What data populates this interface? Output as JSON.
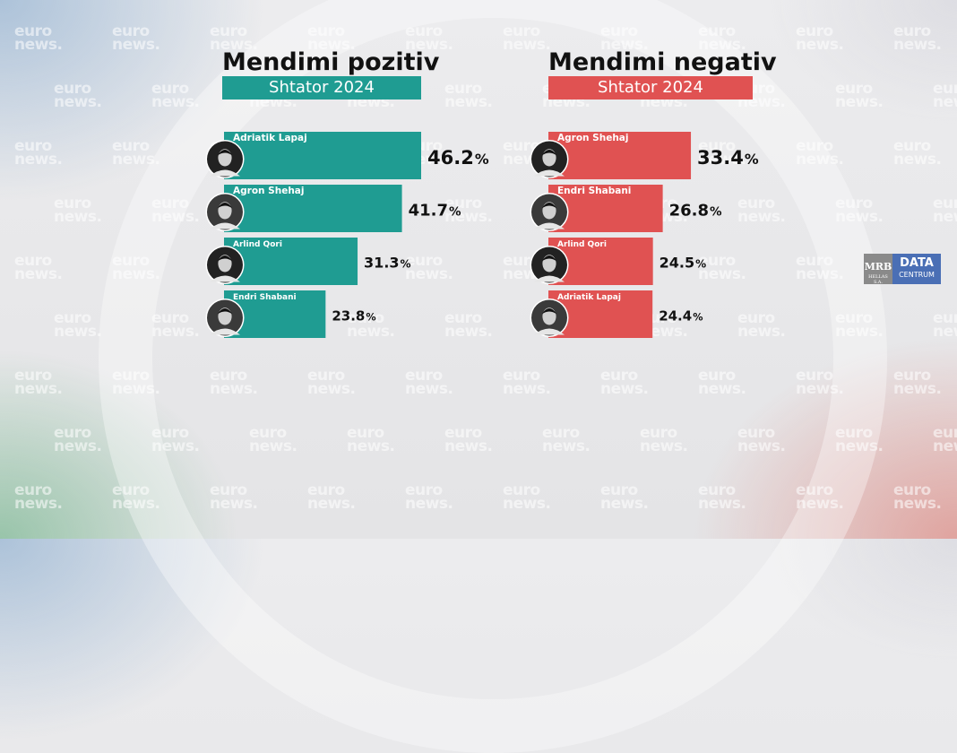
{
  "colors": {
    "positive": "#1f9c92",
    "negative": "#e05252"
  },
  "watermark": {
    "line1": "euro",
    "line2": "news."
  },
  "logo": {
    "mrb": "MRB",
    "mrb_sub": "HELLAS S.A.",
    "data": "DATA",
    "centrum": "CENTRUM"
  },
  "chart_data": [
    {
      "type": "bar",
      "orientation": "horizontal",
      "title": "Mendimi pozitiv",
      "subtitle": "Shtator 2024",
      "categories": [
        "Adriatik Lapaj",
        "Agron Shehaj",
        "Arlind Qori",
        "Endri Shabani"
      ],
      "values": [
        46.2,
        41.7,
        31.3,
        23.8
      ],
      "value_labels": [
        "46.2",
        "41.7",
        "31.3",
        "23.8"
      ],
      "unit": "%",
      "color": "#1f9c92"
    },
    {
      "type": "bar",
      "orientation": "horizontal",
      "title": "Mendimi negativ",
      "subtitle": "Shtator 2024",
      "categories": [
        "Agron Shehaj",
        "Endri Shabani",
        "Arlind Qori",
        "Adriatik Lapaj"
      ],
      "values": [
        33.4,
        26.8,
        24.5,
        24.4
      ],
      "value_labels": [
        "33.4",
        "26.8",
        "24.5",
        "24.4"
      ],
      "unit": "%",
      "color": "#e05252"
    }
  ]
}
